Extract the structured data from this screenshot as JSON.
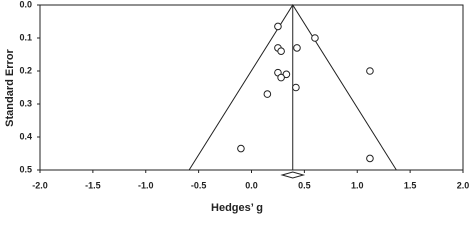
{
  "chart_data": {
    "type": "funnel-scatter",
    "xlabel": "Hedges’ g",
    "ylabel": "Standard Error",
    "x": [
      0.25,
      0.6,
      0.25,
      0.43,
      0.28,
      1.12,
      0.25,
      0.33,
      0.28,
      0.42,
      0.15,
      -0.1,
      1.12
    ],
    "values": [
      0.065,
      0.1,
      0.13,
      0.13,
      0.14,
      0.2,
      0.205,
      0.21,
      0.22,
      0.25,
      0.27,
      0.435,
      0.465
    ],
    "funnel": {
      "x": [
        -0.59,
        0.39,
        1.37
      ],
      "y": [
        0.5,
        0,
        0.5
      ]
    },
    "pooled": {
      "estimate": 0.39,
      "ci": [
        0.29,
        0.49
      ]
    },
    "xlim": [
      -2,
      2
    ],
    "ylim": [
      0,
      0.5
    ],
    "y_inverted": true,
    "xticks": [
      {
        "value": -2,
        "label": "-2.0"
      },
      -1.5,
      {
        "value": -1,
        "label": "-1.0"
      },
      -0.5,
      {
        "value": 0,
        "label": "0.0"
      },
      0.5,
      {
        "value": 1,
        "label": "1.0"
      },
      1.5,
      {
        "value": 2,
        "label": "2.0"
      }
    ],
    "yticks": [
      {
        "value": 0,
        "label": "0.0"
      },
      0.1,
      0.2,
      0.3,
      0.4,
      0.5
    ]
  }
}
